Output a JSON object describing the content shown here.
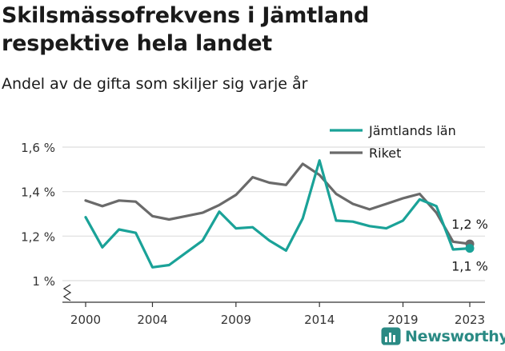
{
  "title": "Skilsmässofrekvens i Jämtland respektive hela landet",
  "subtitle": "Andel av de gifta som skiljer sig varje år",
  "brand": "Newsworthy",
  "colors": {
    "jamtland": "#1aa298",
    "riket": "#6a6a6a",
    "grid": "#dedede",
    "axis": "#333333"
  },
  "chart_data": {
    "type": "line",
    "x": [
      2000,
      2001,
      2002,
      2003,
      2004,
      2005,
      2006,
      2007,
      2008,
      2009,
      2010,
      2011,
      2012,
      2013,
      2014,
      2015,
      2016,
      2017,
      2018,
      2019,
      2020,
      2021,
      2022,
      2023
    ],
    "xticks": [
      2000,
      2004,
      2009,
      2014,
      2019,
      2023
    ],
    "xtick_labels": [
      "2000",
      "2004",
      "2009",
      "2014",
      "2019",
      "2023"
    ],
    "yticks": [
      1.0,
      1.2,
      1.4,
      1.6
    ],
    "ytick_labels": [
      "1 %",
      "1,2 %",
      "1,4 %",
      "1,6 %"
    ],
    "xlim": [
      2000,
      2023
    ],
    "ylim": [
      1.0,
      1.6
    ],
    "y_axis_break": true,
    "grid": "horizontal",
    "legend_position": "top-right",
    "series": [
      {
        "name": "Jämtlands län",
        "color": "#1aa298",
        "values": [
          1.285,
          1.15,
          1.23,
          1.215,
          1.06,
          1.07,
          1.125,
          1.18,
          1.31,
          1.235,
          1.24,
          1.18,
          1.135,
          1.28,
          1.54,
          1.27,
          1.265,
          1.245,
          1.235,
          1.27,
          1.365,
          1.335,
          1.14,
          1.145
        ],
        "end_label": "1,1 %"
      },
      {
        "name": "Riket",
        "color": "#6a6a6a",
        "values": [
          1.36,
          1.335,
          1.36,
          1.355,
          1.29,
          1.275,
          1.29,
          1.305,
          1.34,
          1.385,
          1.465,
          1.44,
          1.43,
          1.525,
          1.475,
          1.39,
          1.345,
          1.32,
          1.345,
          1.37,
          1.39,
          1.305,
          1.175,
          1.165
        ],
        "end_label": "1,2 %"
      }
    ]
  }
}
